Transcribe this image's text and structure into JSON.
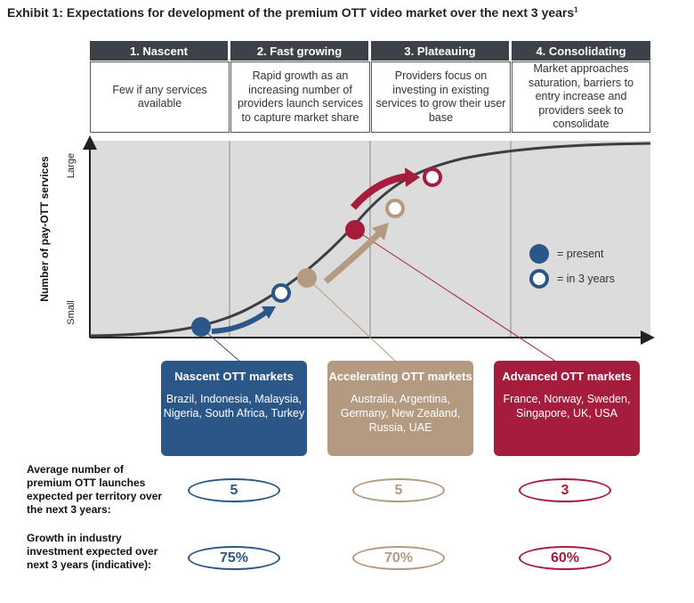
{
  "title": "Exhibit 1: Expectations for development of the premium OTT video market over the next 3 years",
  "title_footnote": "1",
  "stages": [
    {
      "label": "1. Nascent",
      "description": "Few if any services available"
    },
    {
      "label": "2. Fast growing",
      "description": "Rapid growth as an increasing number of providers launch services to capture market share"
    },
    {
      "label": "3. Plateauing",
      "description": "Providers focus on investing in existing services to grow their user base"
    },
    {
      "label": "4. Consolidating",
      "description": "Market approaches saturation, barriers to entry increase and providers seek to consolidate"
    }
  ],
  "axis": {
    "ylabel": "Number of pay-OTT services",
    "y_high": "Large",
    "y_low": "Small"
  },
  "legend": {
    "present": "= present",
    "in3years": "= in 3 years"
  },
  "markets": [
    {
      "title": "Nascent OTT markets",
      "countries": "Brazil, Indonesia, Malaysia, Nigeria, South Africa, Turkey",
      "color": "#2b5788",
      "launches": "5",
      "growth": "75%"
    },
    {
      "title": "Accelerating OTT markets",
      "countries": "Australia, Argentina, Germany, New Zealand, Russia, UAE",
      "color": "#b39a80",
      "launches": "5",
      "growth": "70%"
    },
    {
      "title": "Advanced OTT markets",
      "countries": "France, Norway, Sweden, Singapore, UK, USA",
      "color": "#a61c3c",
      "launches": "3",
      "growth": "60%"
    }
  ],
  "rows": {
    "launches_label": "Average number of premium OTT launches expected per territory over the next 3 years:",
    "growth_label": "Growth in industry investment expected over next 3 years (indicative):"
  },
  "colors": {
    "header": "#3d4249",
    "plot_bg": "#dcdcdc",
    "curve": "#3a3f45",
    "nascent": "#2b5788",
    "accelerating": "#b39a80",
    "advanced": "#a61c3c"
  }
}
